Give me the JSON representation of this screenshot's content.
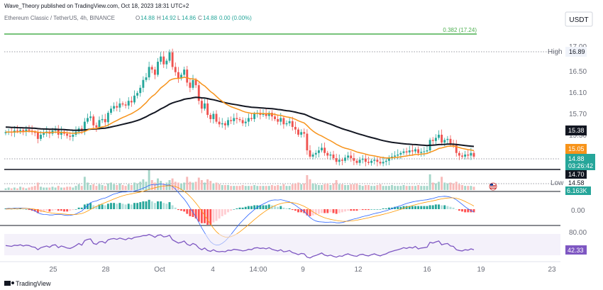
{
  "header": {
    "credit": "Wave_Theory published on TradingView.com, Oct 18, 2023 18:31 UTC+2",
    "symbol": "Ethereum Classic / TetherUS, 4h, BINANCE",
    "ohlc": {
      "o_label": "O",
      "o": "14.88",
      "h_label": "H",
      "h": "14.92",
      "l_label": "L",
      "l": "14.86",
      "c_label": "C",
      "c": "14.88",
      "change": "0.00 (0.00%)"
    }
  },
  "currency": "USDT",
  "footer": {
    "brand": "TradingView"
  },
  "colors": {
    "up": "#26a69a",
    "down": "#ef5350",
    "ema_fast": "#f7931a",
    "ema_slow": "#131722",
    "fib": "#4caf50",
    "rsi": "#7e57c2",
    "macd": "#2962ff",
    "signal": "#ff9800"
  },
  "price_axis": {
    "ticks": [
      "17.00",
      "16.50",
      "16.10",
      "15.70",
      "15.30"
    ]
  },
  "price_tags": {
    "high_label": "High",
    "high_value": "16.89",
    "ema_slow": "15.38",
    "ema_fast": "15.05",
    "last": "14.88",
    "countdown": "03:26:42",
    "support": "14.70",
    "low_label": "Low",
    "low_value": "14.58",
    "volume": "6.163K"
  },
  "macd_axis": {
    "tick": "0.00"
  },
  "rsi_axis": {
    "tick": "80.00",
    "value": "42.33"
  },
  "time_axis": [
    "25",
    "28",
    "Oct",
    "4",
    "14:00",
    "9",
    "12",
    "16",
    "19",
    "23"
  ],
  "chart_data": {
    "type": "candlestick",
    "symbol": "ETC/USDT",
    "timeframe": "4h",
    "fib_level": {
      "label": "0.382 (17.24)",
      "value": 17.24
    },
    "high": 16.89,
    "low": 14.58,
    "support": 14.7,
    "ema_slow": 15.38,
    "ema_fast": 15.05,
    "last_close": 14.88,
    "closes": [
      15.35,
      15.36,
      15.34,
      15.38,
      15.37,
      15.39,
      15.36,
      15.4,
      15.38,
      15.35,
      15.34,
      15.22,
      15.3,
      15.33,
      15.36,
      15.32,
      15.38,
      15.4,
      15.3,
      15.36,
      15.32,
      15.28,
      15.26,
      15.3,
      15.36,
      15.42,
      15.38,
      15.55,
      15.62,
      15.65,
      15.48,
      15.44,
      15.58,
      15.6,
      15.54,
      15.72,
      15.8,
      15.85,
      15.82,
      15.9,
      15.88,
      15.86,
      15.95,
      15.92,
      16.05,
      16.1,
      16.2,
      16.35,
      16.4,
      16.6,
      16.55,
      16.45,
      16.7,
      16.8,
      16.65,
      16.72,
      16.88,
      16.6,
      16.5,
      16.38,
      16.45,
      16.55,
      16.3,
      16.2,
      16.35,
      16.25,
      15.95,
      15.8,
      15.9,
      15.68,
      15.6,
      15.7,
      15.55,
      15.5,
      15.52,
      15.48,
      15.58,
      15.56,
      15.62,
      15.6,
      15.58,
      15.52,
      15.55,
      15.62,
      15.6,
      15.7,
      15.72,
      15.68,
      15.7,
      15.66,
      15.72,
      15.65,
      15.6,
      15.55,
      15.62,
      15.5,
      15.52,
      15.56,
      15.45,
      15.4,
      15.3,
      15.35,
      15.32,
      15.0,
      14.88,
      14.92,
      14.95,
      15.0,
      15.05,
      14.95,
      14.9,
      14.92,
      14.85,
      14.78,
      14.82,
      14.8,
      14.86,
      14.9,
      14.85,
      14.8,
      14.76,
      14.82,
      14.84,
      14.78,
      14.76,
      14.8,
      14.82,
      14.78,
      14.75,
      14.78,
      14.8,
      14.85,
      14.88,
      14.9,
      14.92,
      14.95,
      14.98,
      14.96,
      15.0,
      14.98,
      15.02,
      14.95,
      14.97,
      14.98,
      15.0,
      15.2,
      15.18,
      15.24,
      15.3,
      15.15,
      15.2,
      15.22,
      15.12,
      15.1,
      14.95,
      14.9,
      14.88,
      14.92,
      14.9,
      14.95,
      14.88
    ],
    "volume": [
      0.2,
      0.3,
      0.2,
      0.3,
      0.2,
      0.4,
      0.3,
      0.2,
      0.3,
      0.4,
      0.5,
      0.9,
      0.4,
      0.3,
      0.3,
      0.3,
      0.4,
      0.3,
      0.5,
      0.3,
      0.3,
      0.4,
      0.4,
      0.3,
      0.5,
      0.7,
      0.5,
      1.6,
      0.9,
      0.6,
      0.7,
      0.5,
      0.7,
      0.6,
      0.5,
      0.8,
      0.9,
      0.7,
      0.6,
      0.8,
      0.6,
      0.5,
      0.7,
      0.6,
      0.9,
      0.8,
      1.0,
      1.3,
      1.0,
      2.4,
      1.2,
      0.9,
      1.4,
      1.1,
      0.8,
      0.9,
      1.2,
      1.4,
      1.0,
      0.9,
      0.8,
      0.9,
      1.6,
      1.0,
      0.9,
      1.0,
      1.5,
      1.2,
      0.9,
      1.3,
      1.1,
      0.8,
      0.9,
      0.7,
      0.6,
      0.6,
      0.6,
      0.5,
      0.5,
      0.5,
      0.5,
      0.6,
      0.5,
      0.5,
      0.5,
      0.6,
      0.5,
      0.5,
      0.5,
      0.5,
      0.5,
      0.6,
      0.5,
      0.6,
      0.5,
      0.7,
      0.5,
      0.5,
      0.7,
      0.8,
      0.9,
      0.7,
      0.8,
      1.8,
      1.3,
      0.8,
      0.7,
      0.6,
      0.6,
      0.7,
      0.8,
      0.6,
      0.8,
      1.2,
      0.7,
      0.7,
      0.6,
      0.6,
      0.7,
      0.7,
      0.8,
      0.6,
      0.5,
      0.6,
      0.6,
      0.5,
      0.5,
      0.6,
      0.7,
      0.5,
      0.5,
      0.5,
      0.6,
      0.5,
      0.5,
      0.5,
      0.6,
      0.5,
      0.5,
      0.5,
      0.5,
      0.6,
      0.5,
      0.5,
      0.5,
      1.9,
      0.9,
      0.8,
      1.0,
      1.6,
      0.9,
      0.8,
      0.9,
      0.8,
      1.0,
      0.7,
      0.6,
      0.5,
      0.5,
      0.5,
      0.4
    ],
    "macd_hist": [
      0.01,
      0.01,
      0.0,
      0.01,
      0.0,
      0.01,
      0.0,
      0.0,
      -0.01,
      -0.02,
      -0.03,
      -0.05,
      -0.04,
      -0.03,
      -0.02,
      -0.03,
      -0.02,
      -0.01,
      -0.02,
      -0.02,
      -0.03,
      -0.03,
      -0.02,
      -0.01,
      0.0,
      0.02,
      0.02,
      0.06,
      0.07,
      0.08,
      0.05,
      0.04,
      0.06,
      0.06,
      0.05,
      0.07,
      0.08,
      0.08,
      0.07,
      0.08,
      0.07,
      0.06,
      0.07,
      0.06,
      0.08,
      0.08,
      0.09,
      0.1,
      0.1,
      0.12,
      0.1,
      0.08,
      0.1,
      0.1,
      0.08,
      0.07,
      0.09,
      0.05,
      0.02,
      -0.01,
      -0.02,
      -0.03,
      -0.06,
      -0.09,
      -0.1,
      -0.12,
      -0.16,
      -0.18,
      -0.18,
      -0.2,
      -0.2,
      -0.17,
      -0.15,
      -0.12,
      -0.09,
      -0.07,
      -0.04,
      -0.02,
      0.0,
      0.01,
      0.02,
      0.02,
      0.03,
      0.04,
      0.04,
      0.05,
      0.05,
      0.05,
      0.05,
      0.05,
      0.06,
      0.05,
      0.04,
      0.03,
      0.04,
      0.02,
      0.01,
      0.01,
      -0.01,
      -0.02,
      -0.04,
      -0.04,
      -0.05,
      -0.08,
      -0.09,
      -0.08,
      -0.07,
      -0.06,
      -0.05,
      -0.05,
      -0.05,
      -0.04,
      -0.05,
      -0.06,
      -0.05,
      -0.04,
      -0.03,
      -0.02,
      -0.02,
      -0.02,
      -0.02,
      -0.01,
      -0.01,
      -0.01,
      -0.01,
      0.0,
      0.0,
      0.0,
      0.0,
      0.01,
      0.01,
      0.02,
      0.02,
      0.03,
      0.03,
      0.03,
      0.04,
      0.04,
      0.04,
      0.04,
      0.04,
      0.04,
      0.04,
      0.04,
      0.04,
      0.05,
      0.05,
      0.06,
      0.06,
      0.05,
      0.05,
      0.04,
      0.03,
      0.02,
      0.0,
      -0.02,
      -0.03,
      -0.04,
      -0.04,
      -0.04,
      -0.04
    ],
    "rsi": [
      52,
      51,
      50,
      53,
      52,
      54,
      51,
      53,
      52,
      49,
      48,
      42,
      47,
      49,
      51,
      48,
      53,
      54,
      47,
      51,
      49,
      46,
      45,
      48,
      52,
      57,
      53,
      64,
      67,
      68,
      57,
      55,
      61,
      62,
      58,
      66,
      68,
      69,
      67,
      70,
      68,
      66,
      70,
      68,
      72,
      73,
      74,
      76,
      76,
      79,
      76,
      72,
      77,
      78,
      73,
      74,
      77,
      66,
      62,
      58,
      60,
      63,
      55,
      52,
      57,
      54,
      46,
      42,
      46,
      40,
      38,
      42,
      38,
      37,
      38,
      37,
      41,
      40,
      43,
      42,
      41,
      39,
      40,
      43,
      42,
      46,
      47,
      45,
      46,
      44,
      47,
      43,
      41,
      39,
      42,
      37,
      38,
      40,
      35,
      33,
      30,
      33,
      32,
      24,
      22,
      26,
      28,
      31,
      34,
      29,
      27,
      29,
      26,
      24,
      27,
      26,
      30,
      32,
      29,
      27,
      26,
      30,
      31,
      28,
      27,
      30,
      32,
      29,
      27,
      30,
      32,
      36,
      38,
      40,
      42,
      44,
      47,
      45,
      48,
      46,
      50,
      44,
      46,
      47,
      48,
      60,
      58,
      61,
      63,
      54,
      56,
      57,
      51,
      50,
      42,
      40,
      39,
      42,
      41,
      44,
      42
    ]
  }
}
